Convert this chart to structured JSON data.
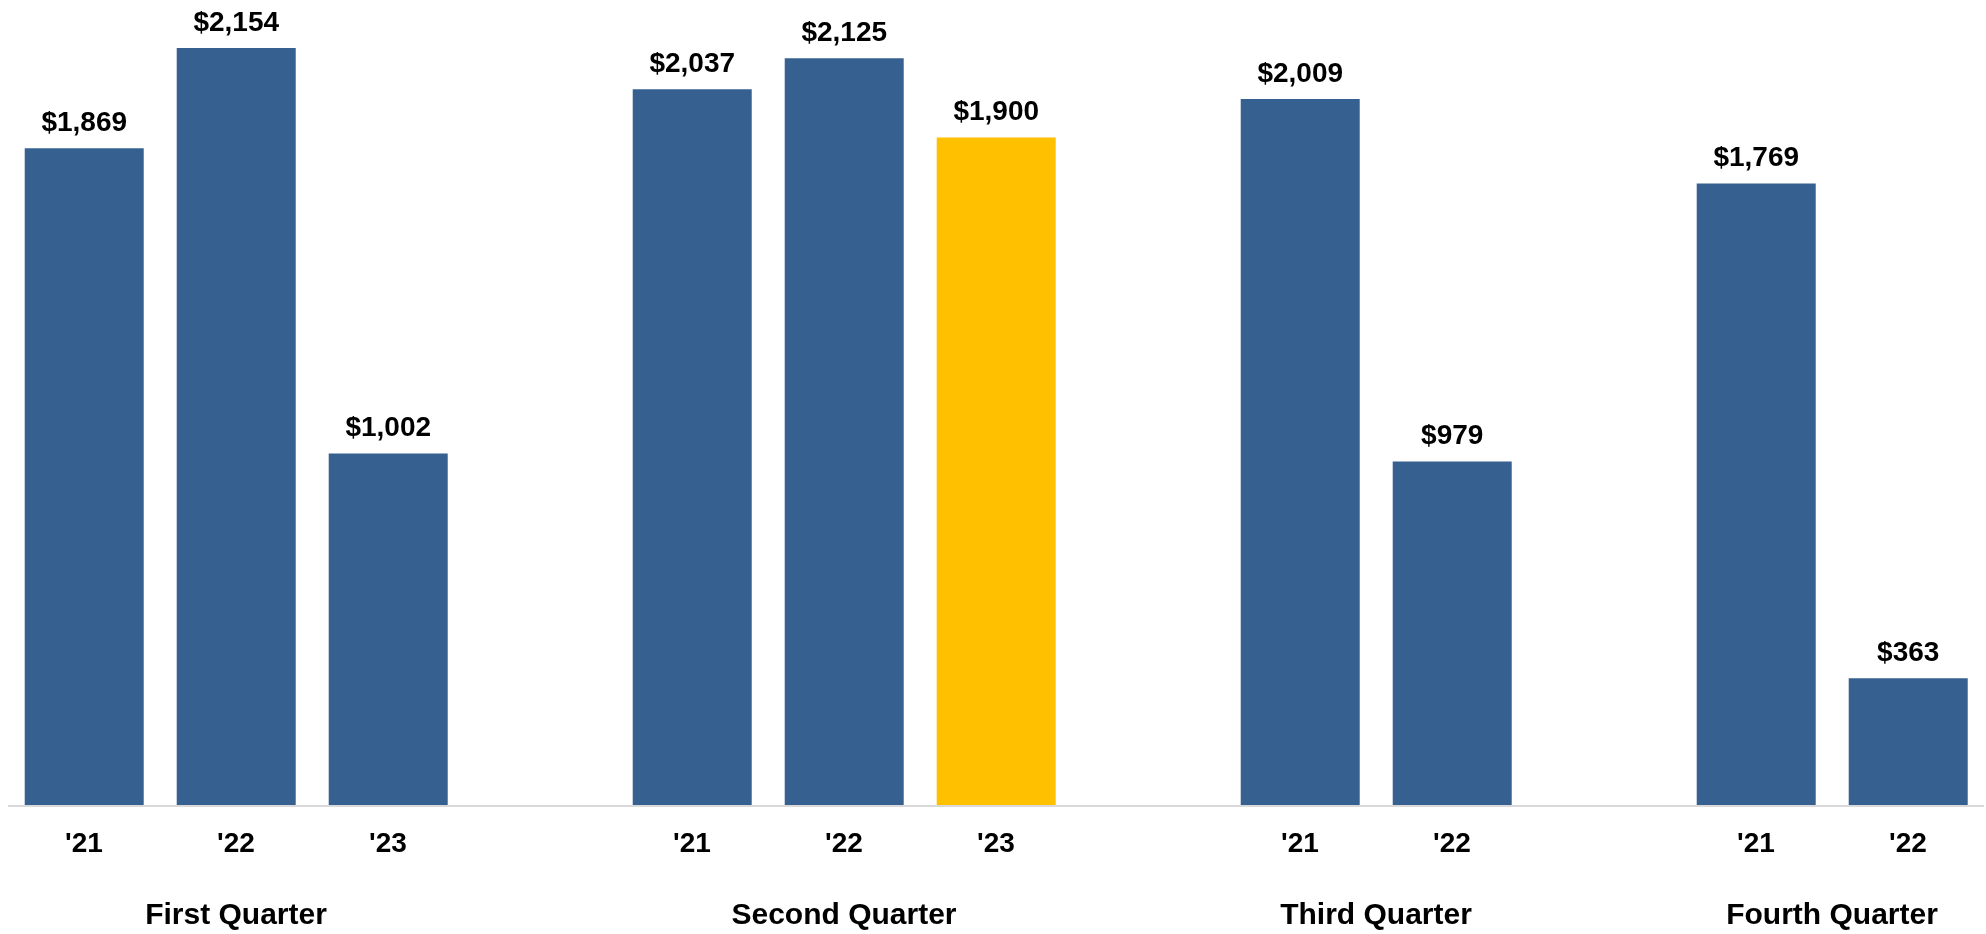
{
  "chart_data": {
    "type": "bar",
    "categories": [
      "'21",
      "'22",
      "'23",
      null,
      "'21",
      "'22",
      "'23",
      null,
      "'21",
      "'22",
      null,
      "'21",
      "'22"
    ],
    "values": [
      1869,
      2154,
      1002,
      null,
      2037,
      2125,
      1900,
      null,
      2009,
      979,
      null,
      1769,
      363
    ],
    "colors": [
      "#366090",
      "#366090",
      "#366090",
      null,
      "#366090",
      "#366090",
      "#ffc000",
      null,
      "#366090",
      "#366090",
      null,
      "#366090",
      "#366090"
    ],
    "value_labels": [
      "$1,869",
      "$2,154",
      "$1,002",
      null,
      "$2,037",
      "$2,125",
      "$1,900",
      null,
      "$2,009",
      "$979",
      null,
      "$1,769",
      "$363"
    ],
    "annotations": [
      "First Quarter",
      "Second Quarter",
      "Third Quarter",
      "Fourth Quarter"
    ]
  }
}
